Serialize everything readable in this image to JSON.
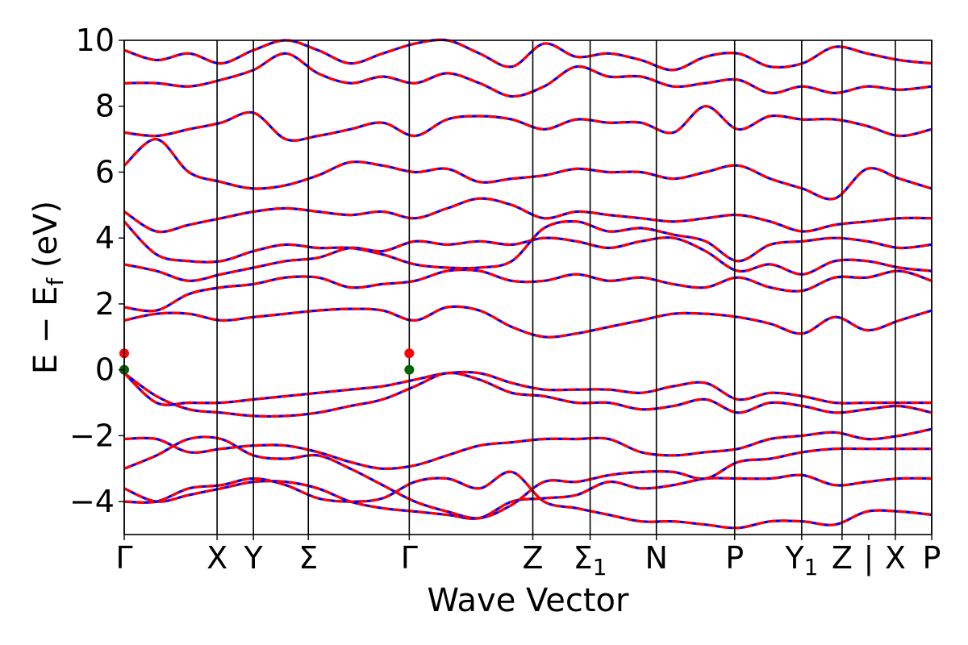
{
  "chart_data": {
    "type": "line",
    "xlabel": "Wave Vector",
    "ylabel_parts": {
      "main": "E − E",
      "sub": "f",
      "unit": " (eV)"
    },
    "ylim": [
      -5,
      10
    ],
    "yticks": [
      -4,
      -2,
      0,
      2,
      4,
      6,
      8,
      10
    ],
    "ytick_labels": [
      "−4",
      "−2",
      "0",
      "2",
      "4",
      "6",
      "8",
      "10"
    ],
    "xlim": [
      0,
      1
    ],
    "high_symmetry_points": [
      {
        "label": "Γ",
        "sub": "",
        "x": 0.0
      },
      {
        "label": "X",
        "sub": "",
        "x": 0.115
      },
      {
        "label": "Y",
        "sub": "",
        "x": 0.16
      },
      {
        "label": "Σ",
        "sub": "",
        "x": 0.228
      },
      {
        "label": "Γ",
        "sub": "",
        "x": 0.353
      },
      {
        "label": "Z",
        "sub": "",
        "x": 0.506
      },
      {
        "label": "Σ",
        "sub": "1",
        "x": 0.577
      },
      {
        "label": "N",
        "sub": "",
        "x": 0.659
      },
      {
        "label": "P",
        "sub": "",
        "x": 0.756
      },
      {
        "label": "Y",
        "sub": "1",
        "x": 0.839
      },
      {
        "label": "Z",
        "sub": "",
        "x": 0.889
      },
      {
        "label": "|",
        "sub": "",
        "x": 0.922
      },
      {
        "label": "X",
        "sub": "",
        "x": 0.955
      },
      {
        "label": "P",
        "sub": "",
        "x": 1.0
      }
    ],
    "series_colors": {
      "dft": "#ff0000",
      "wannier": "#0000ff"
    },
    "band_edge_markers": [
      {
        "x": 0.0,
        "y": 0.5,
        "color": "#ff0000"
      },
      {
        "x": 0.0,
        "y": 0.0,
        "color": "#006400"
      },
      {
        "x": 0.353,
        "y": 0.5,
        "color": "#ff0000"
      },
      {
        "x": 0.353,
        "y": 0.0,
        "color": "#006400"
      }
    ],
    "bands": [
      [
        -4.0,
        -4.0,
        -3.6,
        -3.5,
        -3.3,
        -3.5,
        -3.9,
        -4.0,
        -3.9,
        -3.4,
        -3.3,
        -3.6,
        -3.1,
        -4.0,
        -4.2,
        -4.4,
        -4.6,
        -4.6,
        -4.7,
        -4.8,
        -4.6,
        -4.6,
        -4.7,
        -4.3,
        -4.3,
        -4.4
      ],
      [
        -3.6,
        -4.0,
        -3.8,
        -3.6,
        -3.4,
        -3.4,
        -3.6,
        -4.0,
        -4.2,
        -4.3,
        -4.4,
        -4.5,
        -4.0,
        -3.9,
        -3.8,
        -3.4,
        -3.6,
        -3.5,
        -3.3,
        -3.3,
        -3.3,
        -3.2,
        -3.5,
        -3.4,
        -3.3,
        -3.3
      ],
      [
        -3.0,
        -2.6,
        -2.1,
        -2.1,
        -2.6,
        -2.7,
        -2.6,
        -3.0,
        -3.5,
        -4.0,
        -4.3,
        -4.5,
        -4.1,
        -3.4,
        -3.4,
        -3.2,
        -3.1,
        -3.1,
        -3.3,
        -2.8,
        -2.7,
        -2.5,
        -2.4,
        -2.4,
        -2.4,
        -2.4
      ],
      [
        -2.1,
        -2.1,
        -2.5,
        -2.4,
        -2.3,
        -2.3,
        -2.5,
        -2.8,
        -3.0,
        -2.9,
        -2.6,
        -2.3,
        -2.2,
        -2.1,
        -2.1,
        -2.1,
        -2.5,
        -2.6,
        -2.5,
        -2.4,
        -2.1,
        -2.0,
        -1.9,
        -2.1,
        -2.0,
        -1.8
      ],
      [
        -0.1,
        -1.0,
        -1.0,
        -1.0,
        -0.9,
        -0.8,
        -0.7,
        -0.6,
        -0.5,
        -0.3,
        -0.1,
        -0.1,
        -0.4,
        -0.6,
        -0.6,
        -0.6,
        -0.7,
        -0.5,
        -0.4,
        -0.9,
        -0.7,
        -0.8,
        -1.0,
        -1.0,
        -1.0,
        -1.0
      ],
      [
        -0.1,
        -0.8,
        -1.2,
        -1.3,
        -1.4,
        -1.4,
        -1.3,
        -1.1,
        -0.9,
        -0.5,
        -0.1,
        -0.3,
        -0.7,
        -0.8,
        -1.0,
        -1.0,
        -1.2,
        -1.1,
        -0.9,
        -1.3,
        -1.0,
        -1.1,
        -1.3,
        -1.2,
        -1.1,
        -1.3
      ],
      [
        1.5,
        1.7,
        1.7,
        1.5,
        1.6,
        1.7,
        1.8,
        1.85,
        1.8,
        1.5,
        1.9,
        1.8,
        1.3,
        1.0,
        1.1,
        1.3,
        1.5,
        1.7,
        1.7,
        1.6,
        1.4,
        1.1,
        1.6,
        1.2,
        1.5,
        1.8
      ],
      [
        1.9,
        1.8,
        2.3,
        2.5,
        2.6,
        2.8,
        2.8,
        2.5,
        2.6,
        2.7,
        3.0,
        3.0,
        2.7,
        2.7,
        2.9,
        2.7,
        2.8,
        2.6,
        2.5,
        2.8,
        2.5,
        2.4,
        2.8,
        2.8,
        3.0,
        2.7
      ],
      [
        3.2,
        3.0,
        2.7,
        2.9,
        3.1,
        3.3,
        3.4,
        3.7,
        3.6,
        3.9,
        3.8,
        3.9,
        3.8,
        4.0,
        3.9,
        3.7,
        3.9,
        4.0,
        3.6,
        3.0,
        3.2,
        2.9,
        3.3,
        3.3,
        3.1,
        3.0
      ],
      [
        4.5,
        3.5,
        3.3,
        3.3,
        3.6,
        3.8,
        3.7,
        3.7,
        3.5,
        3.2,
        3.1,
        3.1,
        3.3,
        4.3,
        4.5,
        4.2,
        4.3,
        4.1,
        3.9,
        3.3,
        3.8,
        3.9,
        4.0,
        3.9,
        3.7,
        3.8
      ],
      [
        4.8,
        4.2,
        4.4,
        4.6,
        4.8,
        4.9,
        4.8,
        4.7,
        4.8,
        4.6,
        4.9,
        5.2,
        5.0,
        4.6,
        4.8,
        4.7,
        4.6,
        4.5,
        4.6,
        4.7,
        4.5,
        4.2,
        4.4,
        4.5,
        4.6,
        4.6
      ],
      [
        6.2,
        7.0,
        6.0,
        5.7,
        5.5,
        5.6,
        5.9,
        6.3,
        6.2,
        6.0,
        6.1,
        5.7,
        5.8,
        5.9,
        6.1,
        6.0,
        6.0,
        5.8,
        6.0,
        6.2,
        5.8,
        5.5,
        5.2,
        6.1,
        5.8,
        5.5
      ],
      [
        7.2,
        7.1,
        7.3,
        7.5,
        7.8,
        7.0,
        7.1,
        7.3,
        7.5,
        7.1,
        7.6,
        7.7,
        7.6,
        7.3,
        7.6,
        7.5,
        7.5,
        7.2,
        8.0,
        7.3,
        7.7,
        7.6,
        7.6,
        7.4,
        7.1,
        7.3
      ],
      [
        8.7,
        8.7,
        8.6,
        8.8,
        9.1,
        9.6,
        9.0,
        8.7,
        8.9,
        8.7,
        9.0,
        8.7,
        8.3,
        8.6,
        9.2,
        8.9,
        8.9,
        8.6,
        8.7,
        8.8,
        8.4,
        8.6,
        8.4,
        8.6,
        8.5,
        8.6
      ],
      [
        9.7,
        9.4,
        9.6,
        9.3,
        9.7,
        10.0,
        9.7,
        9.3,
        9.6,
        9.9,
        10.0,
        9.6,
        9.2,
        9.9,
        9.5,
        9.6,
        9.4,
        9.1,
        9.5,
        9.6,
        9.2,
        9.3,
        9.8,
        9.6,
        9.4,
        9.3
      ]
    ]
  }
}
